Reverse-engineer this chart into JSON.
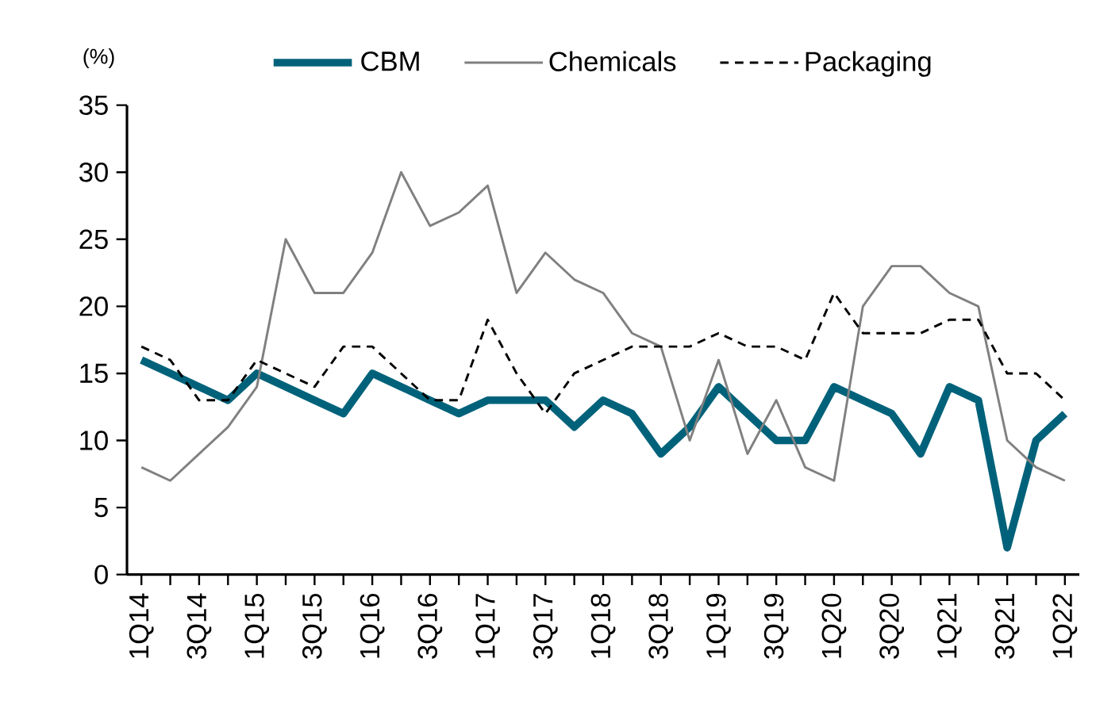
{
  "chart_data": {
    "type": "line",
    "ylabel": "(%)",
    "categories": [
      "1Q14",
      null,
      "3Q14",
      null,
      "1Q15",
      null,
      "3Q15",
      null,
      "1Q16",
      null,
      "3Q16",
      null,
      "1Q17",
      null,
      "3Q17",
      null,
      "1Q18",
      null,
      "3Q18",
      null,
      "1Q19",
      null,
      "3Q19",
      null,
      "1Q20",
      null,
      "3Q20",
      null,
      "1Q21",
      null,
      "3Q21",
      null,
      "1Q22"
    ],
    "series": [
      {
        "name": "CBM",
        "color": "#00627a",
        "line_style": "solid",
        "values": [
          16,
          15,
          14,
          13,
          15,
          14,
          13,
          12,
          15,
          14,
          13,
          12,
          13,
          13,
          13,
          11,
          13,
          12,
          9,
          11,
          14,
          12,
          10,
          10,
          14,
          13,
          12,
          9,
          14,
          13,
          2,
          10,
          12
        ]
      },
      {
        "name": "Chemicals",
        "color": "#808080",
        "line_style": "solid",
        "values": [
          8,
          7,
          9,
          11,
          14,
          25,
          21,
          21,
          24,
          30,
          26,
          27,
          29,
          21,
          24,
          22,
          21,
          18,
          17,
          10,
          16,
          9,
          13,
          8,
          7,
          20,
          23,
          23,
          21,
          20,
          10,
          8,
          7
        ]
      },
      {
        "name": "Packaging",
        "color": "#000000",
        "line_style": "dashed",
        "values": [
          17,
          16,
          13,
          13,
          16,
          15,
          14,
          17,
          17,
          15,
          13,
          13,
          19,
          15,
          12,
          15,
          16,
          17,
          17,
          17,
          18,
          17,
          17,
          16,
          21,
          18,
          18,
          18,
          19,
          19,
          15,
          15,
          13
        ]
      }
    ],
    "ylim": [
      0,
      35
    ],
    "yticks": [
      0,
      5,
      10,
      15,
      20,
      25,
      30,
      35
    ],
    "grid": false,
    "legend": "top",
    "marker": "none"
  }
}
